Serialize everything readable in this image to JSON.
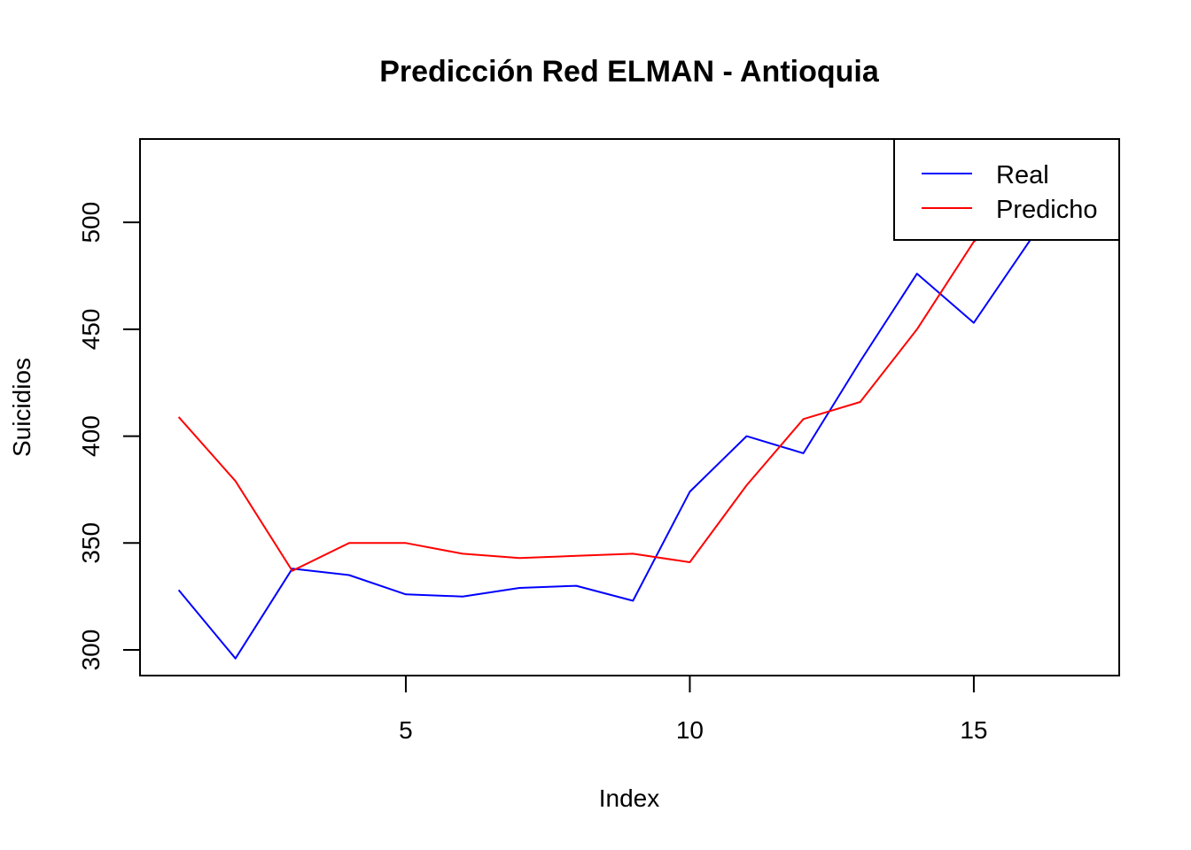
{
  "chart_data": {
    "type": "line",
    "title": "Predicción Red ELMAN - Antioquia",
    "xlabel": "Index",
    "ylabel": "Suicidios",
    "x": [
      1,
      2,
      3,
      4,
      5,
      6,
      7,
      8,
      9,
      10,
      11,
      12,
      13,
      14,
      15,
      16,
      17
    ],
    "xlim": [
      0.32,
      17.56
    ],
    "ylim": [
      288,
      539
    ],
    "x_ticks": [
      5,
      10,
      15
    ],
    "y_ticks": [
      300,
      350,
      400,
      450,
      500
    ],
    "grid": false,
    "legend_position": "top-right",
    "series": [
      {
        "name": "Real",
        "color": "#0000ff",
        "values": [
          328,
          296,
          338,
          335,
          326,
          325,
          329,
          330,
          323,
          374,
          400,
          392,
          435,
          476,
          453,
          492,
          530
        ]
      },
      {
        "name": "Predicho",
        "color": "#ff0000",
        "values": [
          409,
          379,
          337,
          350,
          350,
          345,
          343,
          344,
          345,
          341,
          377,
          408,
          416,
          450,
          491,
          511,
          540
        ]
      }
    ]
  }
}
